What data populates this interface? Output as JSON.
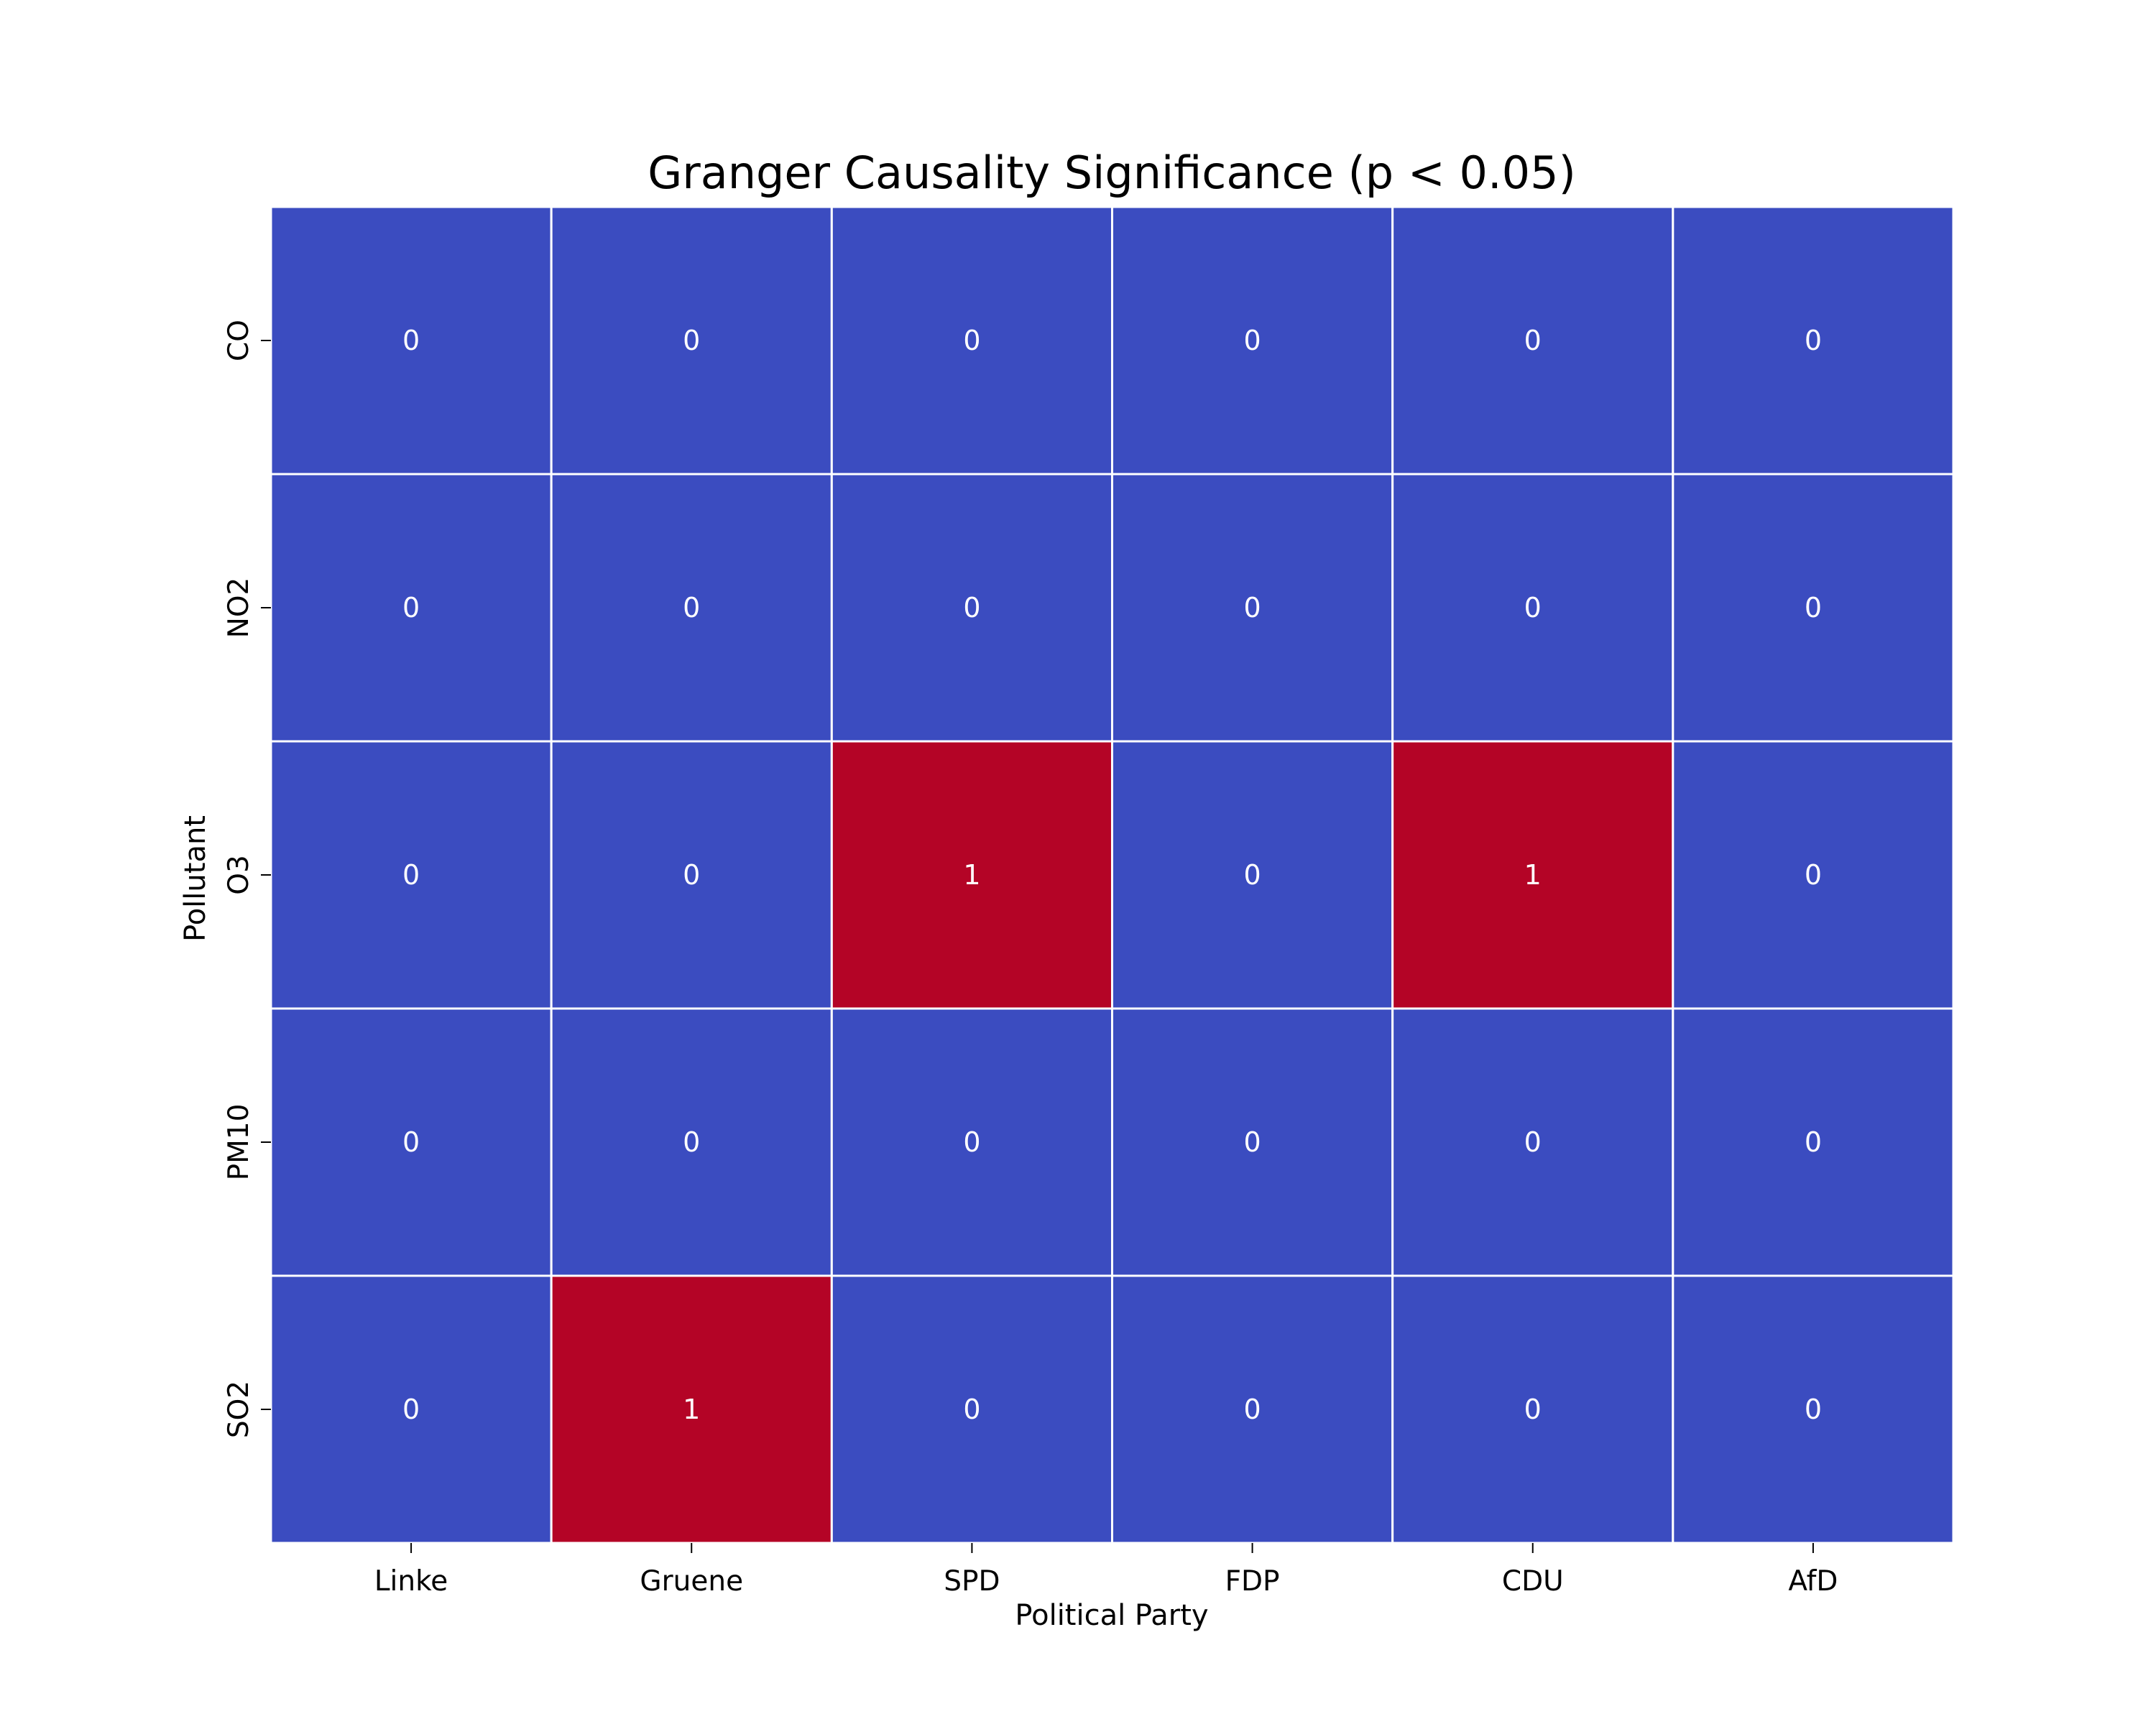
{
  "chart_data": {
    "type": "heatmap",
    "title": "Granger Causality Significance (p < 0.05)",
    "xlabel": "Political Party",
    "ylabel": "Pollutant",
    "x_categories": [
      "Linke",
      "Gruene",
      "SPD",
      "FDP",
      "CDU",
      "AfD"
    ],
    "y_categories": [
      "CO",
      "NO2",
      "O3",
      "PM10",
      "SO2"
    ],
    "values": [
      [
        0,
        0,
        0,
        0,
        0,
        0
      ],
      [
        0,
        0,
        0,
        0,
        0,
        0
      ],
      [
        0,
        0,
        1,
        0,
        1,
        0
      ],
      [
        0,
        0,
        0,
        0,
        0,
        0
      ],
      [
        0,
        1,
        0,
        0,
        0,
        0
      ]
    ],
    "value_range": [
      0,
      1
    ],
    "colormap": "coolwarm",
    "colors": {
      "low": "#3b4cc0",
      "high": "#b40426",
      "cell_border": "#ffffff",
      "annotation": "#ffffff"
    },
    "colorbar": false,
    "grid": false
  }
}
